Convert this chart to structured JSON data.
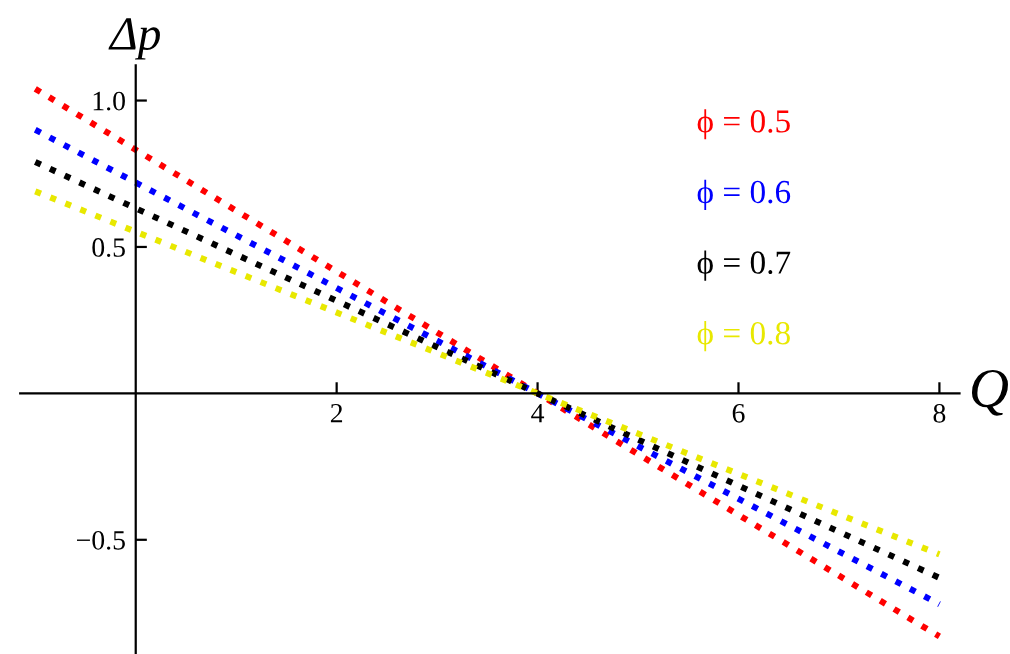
{
  "chart_data": {
    "type": "line",
    "xlabel": "Q",
    "ylabel": "Δp",
    "x": [
      -1,
      4,
      8
    ],
    "series": [
      {
        "name": "ϕ = 0.5",
        "color": "#ff0000",
        "values": [
          1.04,
          0,
          -0.83
        ]
      },
      {
        "name": "ϕ = 0.6",
        "color": "#0000ff",
        "values": [
          0.9,
          0,
          -0.72
        ]
      },
      {
        "name": "ϕ = 0.7",
        "color": "#000000",
        "values": [
          0.79,
          0,
          -0.63
        ]
      },
      {
        "name": "ϕ = 0.8",
        "color": "#e8e800",
        "values": [
          0.69,
          0,
          -0.55
        ]
      }
    ],
    "xlim": [
      -1.15,
      8.2
    ],
    "ylim": [
      -0.89,
      1.12
    ],
    "xticks": [
      2,
      4,
      6,
      8
    ],
    "yticks": [
      {
        "value": -0.5,
        "label": "−0.5"
      },
      {
        "value": 0.5,
        "label": "0.5"
      },
      {
        "value": 1.0,
        "label": "1.0"
      }
    ],
    "line_style": "dotted",
    "marker": "none",
    "grid": false,
    "legend": "top right"
  }
}
